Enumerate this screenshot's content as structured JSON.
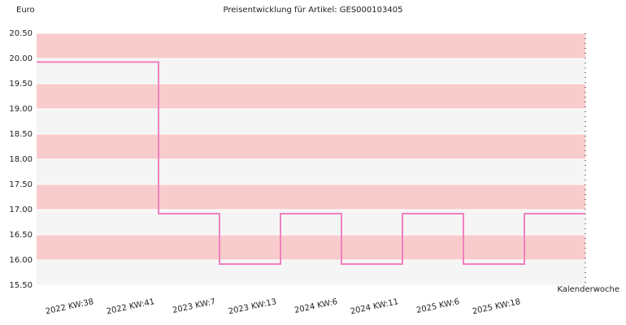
{
  "chart_data": {
    "type": "step-line",
    "title": "Preisentwicklung für Artikel: GES000103405",
    "y_label": "Euro",
    "x_label": "Kalenderwoche",
    "categories": [
      "2022 KW:38",
      "2022 KW:41",
      "2023 KW:7",
      "2023 KW:13",
      "2024 KW:6",
      "2024 KW:11",
      "2025 KW:6",
      "2025 KW:18"
    ],
    "values": [
      19.93,
      16.92,
      15.92,
      16.92,
      15.92,
      16.92,
      15.92,
      16.92
    ],
    "color": "#f080c0",
    "band_colors": [
      "#f5f5f5",
      "#f8cccc"
    ],
    "ylim": [
      15.5,
      20.5
    ],
    "yticks": [
      {
        "value": 15.5,
        "label": "15.50"
      },
      {
        "value": 16,
        "label": "16.00"
      },
      {
        "value": 16.5,
        "label": "16.50"
      },
      {
        "value": 17,
        "label": "17.00"
      },
      {
        "value": 17.5,
        "label": "17.50"
      },
      {
        "value": 18,
        "label": "18.00"
      },
      {
        "value": 18.5,
        "label": "18.50"
      },
      {
        "value": 19,
        "label": "19.00"
      },
      {
        "value": 19.5,
        "label": "19.50"
      },
      {
        "value": 20,
        "label": "20.00"
      },
      {
        "value": 20.5,
        "label": "20.50"
      }
    ]
  }
}
